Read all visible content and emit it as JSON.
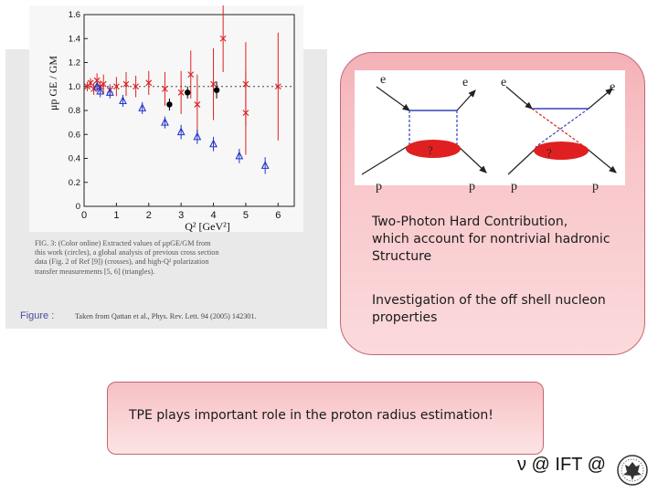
{
  "figure": {
    "caption_lines": [
      "FIG. 3: (Color online) Extracted values of μpGE/GM from",
      "this work (circles), a global analysis of previous cross section",
      "data (Fig. 2 of Ref [9]) (crosses), and high-Q² polarization",
      "transfer measurements [5, 6] (triangles)."
    ],
    "label": "Figure :",
    "reference": "Taken from Qattan et al., Phys. Rev. Lett. 94 (2005) 142301."
  },
  "chart_data": {
    "type": "scatter",
    "xlabel": "Q² [GeV²]",
    "ylabel": "μp GE / GM",
    "xlim": [
      0,
      6.5
    ],
    "ylim": [
      0,
      1.6
    ],
    "x_ticks": [
      "0",
      "1",
      "2",
      "3",
      "4",
      "5",
      "6"
    ],
    "y_ticks": [
      "0",
      "0.2",
      "0.4",
      "0.6",
      "0.8",
      "1.0",
      "1.2",
      "1.4",
      "1.6"
    ],
    "reference_line": 1.0,
    "series": [
      {
        "color": "#dd2222",
        "marker": "cross",
        "points": [
          {
            "x": 0.1,
            "y": 1.0,
            "err": 0.04
          },
          {
            "x": 0.2,
            "y": 1.03,
            "err": 0.04
          },
          {
            "x": 0.3,
            "y": 0.98,
            "err": 0.05
          },
          {
            "x": 0.4,
            "y": 1.05,
            "err": 0.06
          },
          {
            "x": 0.5,
            "y": 1.0,
            "err": 0.05
          },
          {
            "x": 0.6,
            "y": 1.02,
            "err": 0.08
          },
          {
            "x": 0.8,
            "y": 0.97,
            "err": 0.05
          },
          {
            "x": 1.0,
            "y": 1.0,
            "err": 0.08
          },
          {
            "x": 1.3,
            "y": 1.02,
            "err": 0.1
          },
          {
            "x": 1.6,
            "y": 1.0,
            "err": 0.09
          },
          {
            "x": 2.0,
            "y": 1.03,
            "err": 0.1
          },
          {
            "x": 2.5,
            "y": 0.98,
            "err": 0.14
          },
          {
            "x": 3.0,
            "y": 0.95,
            "err": 0.18
          },
          {
            "x": 3.3,
            "y": 1.1,
            "err": 0.2
          },
          {
            "x": 3.5,
            "y": 0.85,
            "err": 0.25
          },
          {
            "x": 4.0,
            "y": 1.02,
            "err": 0.3
          },
          {
            "x": 4.3,
            "y": 1.4,
            "err": 0.28
          },
          {
            "x": 5.0,
            "y": 0.78,
            "err": 0.35
          },
          {
            "x": 5.0,
            "y": 1.02,
            "err": 0.35
          },
          {
            "x": 6.0,
            "y": 1.0,
            "err": 0.45
          }
        ]
      },
      {
        "color": "#2233cc",
        "marker": "triangle",
        "points": [
          {
            "x": 0.4,
            "y": 1.0,
            "err": 0.04
          },
          {
            "x": 0.5,
            "y": 0.96,
            "err": 0.05
          },
          {
            "x": 0.8,
            "y": 0.95,
            "err": 0.05
          },
          {
            "x": 1.2,
            "y": 0.88,
            "err": 0.05
          },
          {
            "x": 1.8,
            "y": 0.82,
            "err": 0.05
          },
          {
            "x": 2.5,
            "y": 0.7,
            "err": 0.05
          },
          {
            "x": 3.0,
            "y": 0.62,
            "err": 0.06
          },
          {
            "x": 3.5,
            "y": 0.58,
            "err": 0.06
          },
          {
            "x": 4.0,
            "y": 0.52,
            "err": 0.06
          },
          {
            "x": 4.8,
            "y": 0.42,
            "err": 0.06
          },
          {
            "x": 5.6,
            "y": 0.34,
            "err": 0.07
          }
        ]
      },
      {
        "color": "#000000",
        "marker": "circle",
        "points": [
          {
            "x": 2.64,
            "y": 0.85,
            "err": 0.05
          },
          {
            "x": 3.2,
            "y": 0.95,
            "err": 0.05
          },
          {
            "x": 4.1,
            "y": 0.97,
            "err": 0.07
          }
        ]
      }
    ]
  },
  "diagram": {
    "labels_top": [
      "e",
      "e",
      "e",
      "e"
    ],
    "labels_bottom": [
      "p",
      "p",
      "p",
      "p"
    ],
    "blob_labels": [
      "?",
      "?"
    ]
  },
  "text": {
    "para1": [
      "Two-Photon Hard Contribution,",
      "which account for nontrivial hadronic",
      "Structure"
    ],
    "para2": [
      "Investigation of the off shell nucleon",
      "properties"
    ],
    "tpe": "TPE plays important role in the proton radius estimation!",
    "footer": "ν @ IFT @"
  }
}
